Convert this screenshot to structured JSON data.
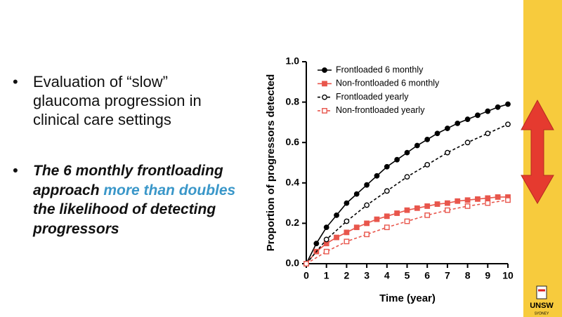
{
  "bullets": [
    {
      "parts": [
        "Evaluation of “slow” glaucoma progression in clinical care settings"
      ]
    },
    {
      "parts": [
        "The 6 monthly frontloading approach ",
        "more than doubles",
        " the likelihood of detecting progressors"
      ]
    }
  ],
  "logo": {
    "name": "UNSW",
    "sub": "SYDNEY"
  },
  "chart_data": {
    "type": "line",
    "xlabel": "Time (year)",
    "ylabel": "Proportion of progressors detected",
    "xlim": [
      0,
      10
    ],
    "xticks": [
      0,
      1,
      2,
      3,
      4,
      5,
      6,
      7,
      8,
      9,
      10
    ],
    "ylim": [
      0,
      1
    ],
    "yticks": [
      {
        "value": 0,
        "label": "0.0"
      },
      {
        "value": 0.2,
        "label": "0.2"
      },
      {
        "value": 0.4,
        "label": "0.4"
      },
      {
        "value": 0.6,
        "label": "0.6"
      },
      {
        "value": 0.8,
        "label": "0.8"
      },
      {
        "value": 1,
        "label": "1.0"
      }
    ],
    "legend": "upper left",
    "series": [
      {
        "name": "Frontloaded 6 monthly",
        "color": "#000000",
        "marker": "circle",
        "filled": true,
        "dashed": false,
        "x": [
          0,
          0.5,
          1,
          1.5,
          2,
          2.5,
          3,
          3.5,
          4,
          4.5,
          5,
          5.5,
          6,
          6.5,
          7,
          7.5,
          8,
          8.5,
          9,
          9.5,
          10
        ],
        "values": [
          0,
          0.1,
          0.18,
          0.24,
          0.3,
          0.345,
          0.39,
          0.435,
          0.48,
          0.515,
          0.55,
          0.585,
          0.615,
          0.645,
          0.67,
          0.695,
          0.715,
          0.735,
          0.755,
          0.775,
          0.79
        ]
      },
      {
        "name": "Non-frontloaded 6 monthly",
        "color": "#e8564c",
        "marker": "square",
        "filled": true,
        "dashed": false,
        "x": [
          0,
          0.5,
          1,
          1.5,
          2,
          2.5,
          3,
          3.5,
          4,
          4.5,
          5,
          5.5,
          6,
          6.5,
          7,
          7.5,
          8,
          8.5,
          9,
          9.5,
          10
        ],
        "values": [
          0,
          0.06,
          0.1,
          0.13,
          0.155,
          0.18,
          0.2,
          0.22,
          0.235,
          0.25,
          0.265,
          0.275,
          0.285,
          0.295,
          0.3,
          0.31,
          0.315,
          0.32,
          0.325,
          0.33,
          0.33
        ]
      },
      {
        "name": "Frontloaded yearly",
        "color": "#000000",
        "marker": "circle",
        "filled": false,
        "dashed": true,
        "x": [
          0,
          1,
          2,
          3,
          4,
          5,
          6,
          7,
          8,
          9,
          10
        ],
        "values": [
          0,
          0.12,
          0.21,
          0.29,
          0.36,
          0.43,
          0.49,
          0.55,
          0.6,
          0.645,
          0.69
        ]
      },
      {
        "name": "Non-frontloaded yearly",
        "color": "#e8564c",
        "marker": "square",
        "filled": false,
        "dashed": true,
        "x": [
          0,
          1,
          2,
          3,
          4,
          5,
          6,
          7,
          8,
          9,
          10
        ],
        "values": [
          0,
          0.06,
          0.11,
          0.145,
          0.18,
          0.21,
          0.24,
          0.265,
          0.285,
          0.3,
          0.315
        ]
      }
    ]
  }
}
